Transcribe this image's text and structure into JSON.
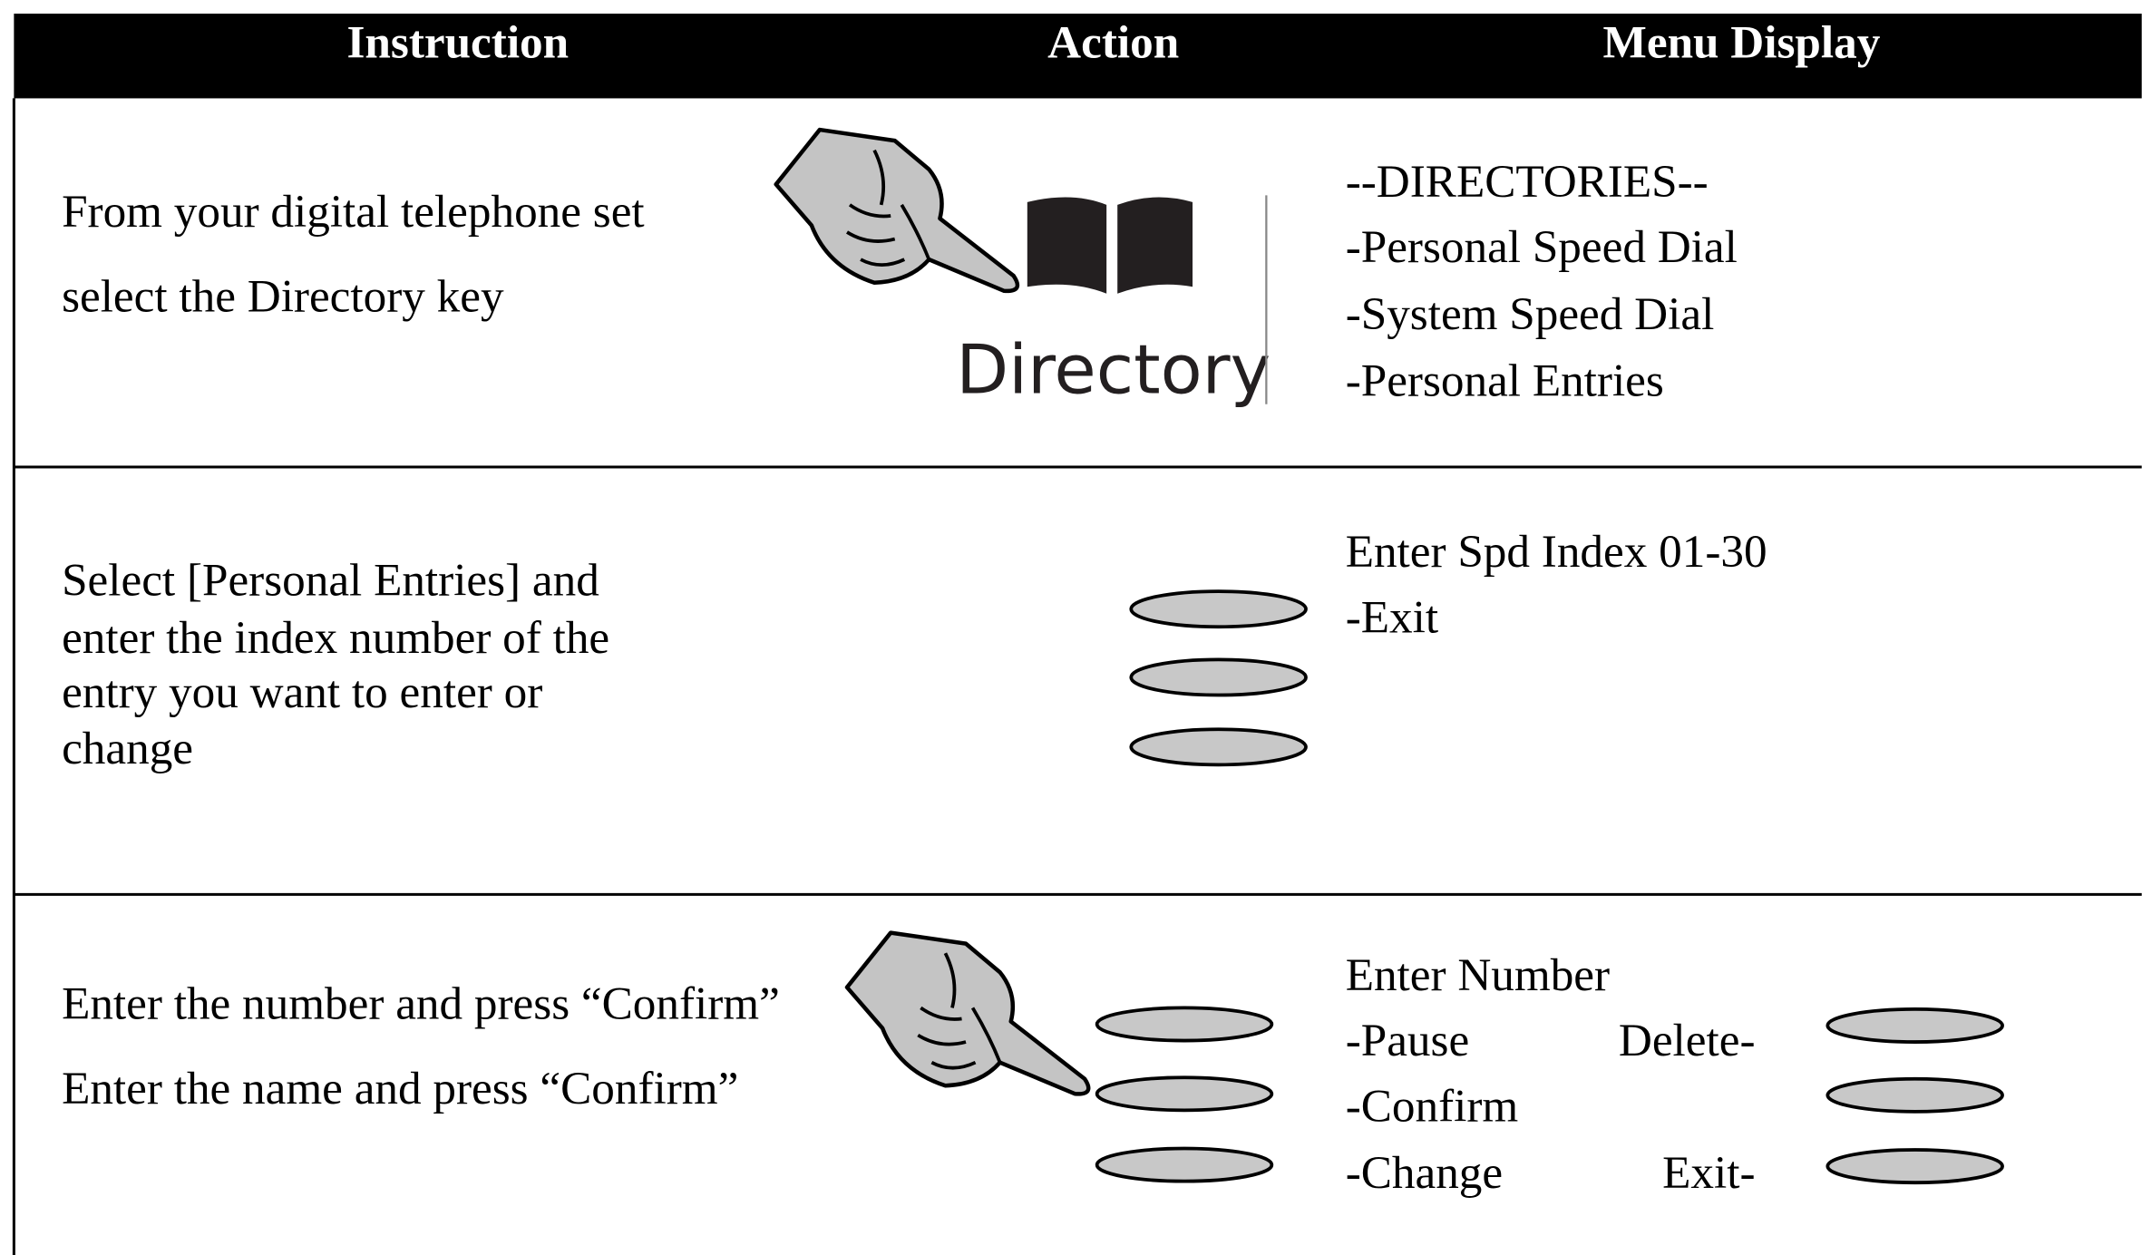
{
  "header": {
    "columns": [
      "Instruction",
      "Action",
      "Menu Display"
    ]
  },
  "rows": [
    {
      "instruction": [
        "From your digital telephone set",
        "select the Directory key"
      ],
      "action_label": "Directory",
      "menu": [
        "--DIRECTORIES--",
        "-Personal Speed Dial",
        "-System Speed Dial",
        "-Personal Entries"
      ]
    },
    {
      "instruction": [
        "Select [Personal Entries] and",
        "enter the index number of the",
        "entry you want to enter or",
        "change"
      ],
      "menu": [
        "Enter Spd Index 01-30",
        "-Exit"
      ]
    },
    {
      "instruction": [
        "Enter the number and press “Confirm”",
        "Enter the name and press “Confirm”"
      ],
      "menu": [
        "Enter Number",
        "-Pause",
        "Delete-",
        "-Confirm",
        "-Change",
        "Exit-"
      ]
    }
  ]
}
